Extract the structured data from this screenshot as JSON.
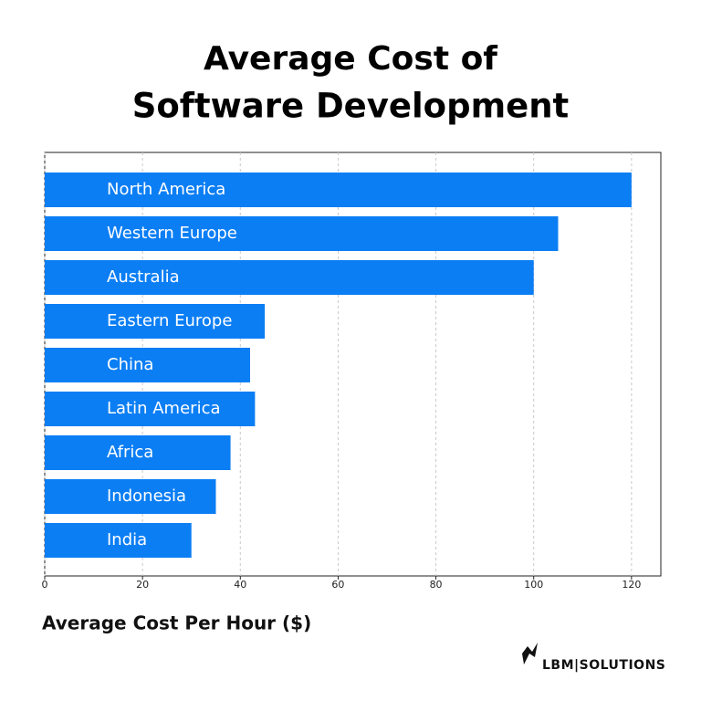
{
  "chart_data": {
    "type": "hbar",
    "title": [
      "Average Cost of",
      "Software Development"
    ],
    "x_label": "Average Cost Per Hour ($)",
    "categories": [
      "North America",
      "Western Europe",
      "Australia",
      "Eastern Europe",
      "China",
      "Latin America",
      "Africa",
      "Indonesia",
      "India"
    ],
    "values": [
      120,
      105,
      100,
      45,
      42,
      43,
      38,
      35,
      30
    ],
    "color": "#0b7ef4",
    "xlim": [
      0,
      126
    ],
    "xticks": [
      0,
      20,
      40,
      60,
      80,
      100,
      120
    ],
    "grid": true
  },
  "brand": "LBM|SOLUTIONS"
}
